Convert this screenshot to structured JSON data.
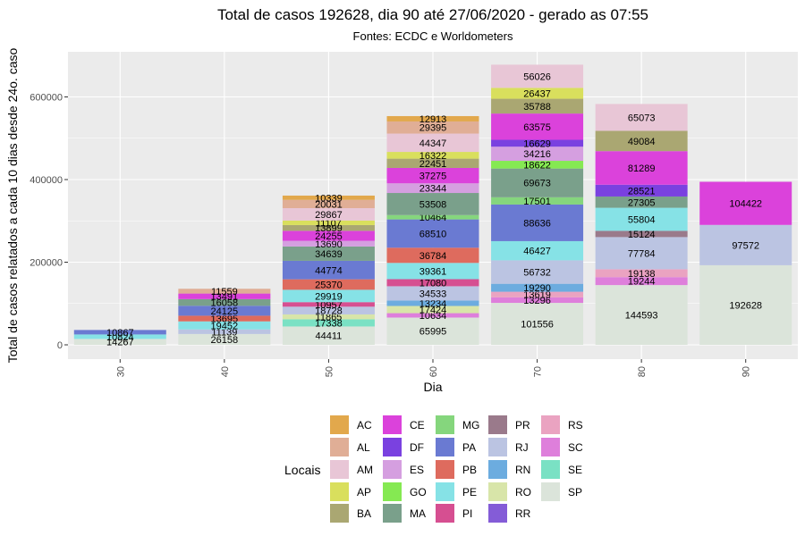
{
  "chart_data": {
    "type": "bar",
    "stacked": true,
    "title": "Total de casos 192628, dia 90 até 27/06/2020 - gerado as 07:55",
    "subtitle": "Fontes: ECDC e Worldometers",
    "xlabel": "Dia",
    "ylabel": "Total de casos relatados a cada 10 dias desde 24o. caso",
    "categories": [
      "30",
      "40",
      "50",
      "60",
      "70",
      "80",
      "90"
    ],
    "ylim": [
      0,
      720000
    ],
    "yticks": [
      0,
      200000,
      400000,
      600000
    ],
    "ytick_labels": [
      "0",
      "200000",
      "400000",
      "600000"
    ],
    "grid": true,
    "legend_title": "Locais",
    "legend_position": "bottom",
    "series": [
      {
        "name": "AC",
        "color": "#e2a84c",
        "values": [
          0,
          0,
          10339,
          12913,
          0,
          0,
          0
        ]
      },
      {
        "name": "AL",
        "color": "#e0ae96",
        "values": [
          0,
          11559,
          20031,
          29395,
          0,
          0,
          0
        ]
      },
      {
        "name": "AM",
        "color": "#e8c6d6",
        "values": [
          0,
          0,
          29867,
          44347,
          56026,
          65073,
          0
        ]
      },
      {
        "name": "AP",
        "color": "#d9df5d",
        "values": [
          0,
          0,
          11107,
          16322,
          26437,
          0,
          0
        ]
      },
      {
        "name": "BA",
        "color": "#aaa772",
        "values": [
          0,
          0,
          13899,
          22451,
          35788,
          49084,
          0
        ]
      },
      {
        "name": "CE",
        "color": "#db42db",
        "values": [
          0,
          13491,
          24255,
          37275,
          63575,
          81289,
          104422
        ]
      },
      {
        "name": "DF",
        "color": "#7a41e0",
        "values": [
          0,
          0,
          0,
          0,
          16629,
          28521,
          0
        ]
      },
      {
        "name": "ES",
        "color": "#d59fe0",
        "values": [
          0,
          0,
          13690,
          23344,
          34216,
          0,
          0
        ]
      },
      {
        "name": "GO",
        "color": "#85e952",
        "values": [
          0,
          0,
          0,
          0,
          18622,
          0,
          0
        ]
      },
      {
        "name": "MA",
        "color": "#7aa08b",
        "values": [
          0,
          16058,
          34639,
          53508,
          69673,
          27305,
          0
        ]
      },
      {
        "name": "MG",
        "color": "#85d67d",
        "values": [
          0,
          0,
          0,
          10464,
          17501,
          0,
          0
        ]
      },
      {
        "name": "PA",
        "color": "#6a7ad2",
        "values": [
          10867,
          24125,
          44774,
          68510,
          88636,
          0,
          0
        ]
      },
      {
        "name": "PB",
        "color": "#de6b5e",
        "values": [
          0,
          13695,
          25370,
          36784,
          0,
          0,
          0
        ]
      },
      {
        "name": "PE",
        "color": "#86e2e6",
        "values": [
          10824,
          19452,
          29919,
          39361,
          46427,
          55804,
          0
        ]
      },
      {
        "name": "PI",
        "color": "#d64f91",
        "values": [
          0,
          0,
          10957,
          17080,
          0,
          0,
          0
        ]
      },
      {
        "name": "PR",
        "color": "#9a7a8b",
        "values": [
          0,
          0,
          0,
          0,
          0,
          15124,
          0
        ]
      },
      {
        "name": "RJ",
        "color": "#bbc4e2",
        "values": [
          0,
          11139,
          18728,
          34533,
          56732,
          77784,
          97572
        ]
      },
      {
        "name": "RN",
        "color": "#6cacdf",
        "values": [
          0,
          0,
          0,
          13234,
          19290,
          0,
          0
        ]
      },
      {
        "name": "RO",
        "color": "#d8e5a9",
        "values": [
          0,
          0,
          11865,
          17424,
          0,
          0,
          0
        ]
      },
      {
        "name": "RR",
        "color": "#845cd7",
        "values": [
          0,
          0,
          0,
          0,
          0,
          0,
          0
        ]
      },
      {
        "name": "RS",
        "color": "#eaa3c1",
        "values": [
          0,
          0,
          0,
          0,
          13619,
          19138,
          0
        ]
      },
      {
        "name": "SC",
        "color": "#de7fdb",
        "values": [
          0,
          0,
          0,
          10634,
          13296,
          19244,
          0
        ]
      },
      {
        "name": "SE",
        "color": "#7ae1c4",
        "values": [
          0,
          0,
          17338,
          0,
          0,
          0,
          0
        ]
      },
      {
        "name": "SP",
        "color": "#dbe4da",
        "values": [
          14267,
          26158,
          44411,
          65995,
          101556,
          144593,
          192628
        ]
      }
    ]
  }
}
